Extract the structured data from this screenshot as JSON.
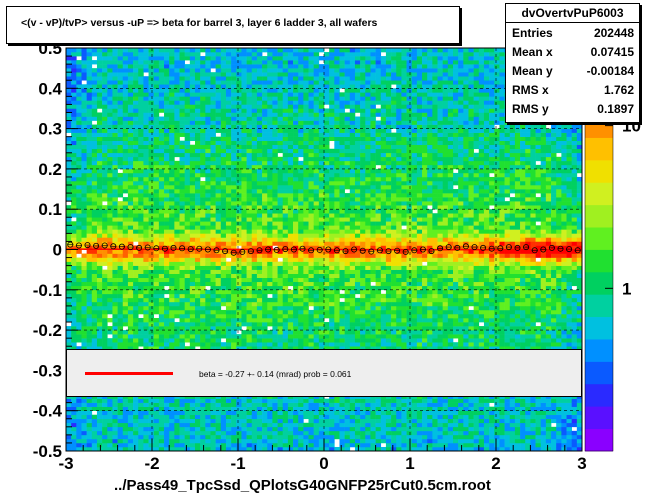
{
  "title": "<(v - vP)/tvP> versus  -uP => beta for barrel 3, layer 6 ladder 3, all wafers",
  "xlabel": "../Pass49_TpcSsd_QPlotsG40GNFP25rCut0.5cm.root",
  "stats": {
    "name": "dvOvertvPuP6003",
    "rows": [
      {
        "key": "Entries",
        "value": "202448"
      },
      {
        "key": "Mean x",
        "value": "0.07415"
      },
      {
        "key": "Mean y",
        "value": "-0.00184"
      },
      {
        "key": "RMS x",
        "value": "1.762"
      },
      {
        "key": "RMS y",
        "value": "0.1897"
      }
    ]
  },
  "fit": {
    "text": "beta =   -0.27 +-  0.14 (mrad) prob = 0.061"
  },
  "colors": {
    "fit_line": "#ff0000",
    "profile_marker": "#000000",
    "palette": [
      "#8a00ff",
      "#5a10ff",
      "#2a2aff",
      "#0a5aff",
      "#0090ff",
      "#00c0e0",
      "#00d0a0",
      "#00d060",
      "#20e030",
      "#60f020",
      "#a0f020",
      "#d0f020",
      "#f0e000",
      "#ffc000",
      "#ff9000",
      "#ff6000",
      "#ff3000",
      "#ff0000"
    ]
  },
  "chart_data": {
    "type": "heatmap",
    "title": "<(v - vP)/tvP> versus  -uP => beta for barrel 3, layer 6 ladder 3, all wafers",
    "xlabel": "../Pass49_TpcSsd_QPlotsG40GNFP25rCut0.5cm.root",
    "ylabel": "",
    "xlim": [
      -3,
      3
    ],
    "ylim": [
      -0.5,
      0.5
    ],
    "x_ticks": [
      "-3",
      "-2",
      "-1",
      "0",
      "1",
      "2",
      "3"
    ],
    "y_ticks": [
      "-0.5",
      "-0.4",
      "-0.3",
      "-0.2",
      "-0.1",
      "0",
      "0.1",
      "0.2",
      "0.3",
      "0.4",
      "0.5"
    ],
    "z_scale": "log",
    "z_ticks": [
      "1",
      "10"
    ],
    "z_tick_values": [
      1,
      10
    ],
    "z_range": [
      0.1,
      30
    ],
    "grid": true,
    "band_center_y": 0.0,
    "fit_slope_mrad": -0.27,
    "fit_slope_error_mrad": 0.14,
    "fit_prob": 0.061,
    "profile": {
      "name": "profile",
      "x": [
        -2.95,
        -2.85,
        -2.75,
        -2.65,
        -2.55,
        -2.45,
        -2.35,
        -2.25,
        -2.15,
        -2.05,
        -1.95,
        -1.85,
        -1.75,
        -1.65,
        -1.55,
        -1.45,
        -1.35,
        -1.25,
        -1.15,
        -1.05,
        -0.95,
        -0.85,
        -0.75,
        -0.65,
        -0.55,
        -0.45,
        -0.35,
        -0.25,
        -0.15,
        -0.05,
        0.05,
        0.15,
        0.25,
        0.35,
        0.45,
        0.55,
        0.65,
        0.75,
        0.85,
        0.95,
        1.05,
        1.15,
        1.25,
        1.35,
        1.45,
        1.55,
        1.65,
        1.75,
        1.85,
        1.95,
        2.05,
        2.15,
        2.25,
        2.35,
        2.45,
        2.55,
        2.65,
        2.75,
        2.85,
        2.95
      ],
      "y": [
        0.012,
        0.01,
        0.011,
        0.009,
        0.01,
        0.008,
        0.007,
        0.006,
        0.004,
        0.005,
        0.003,
        0.002,
        0.004,
        0.003,
        0.001,
        0.002,
        0.0,
        -0.002,
        -0.004,
        -0.008,
        -0.006,
        -0.004,
        -0.002,
        0.0,
        -0.001,
        0.001,
        0.0,
        0.002,
        -0.002,
        -0.001,
        0.0,
        -0.002,
        -0.004,
        0.0,
        -0.003,
        -0.005,
        -0.002,
        -0.004,
        -0.003,
        -0.006,
        -0.002,
        0.0,
        -0.004,
        0.003,
        0.006,
        0.004,
        0.008,
        0.006,
        0.004,
        0.002,
        0.003,
        0.006,
        0.004,
        0.006,
        -0.002,
        0.0,
        0.004,
        0.002,
        0.001,
        -0.002
      ]
    }
  }
}
